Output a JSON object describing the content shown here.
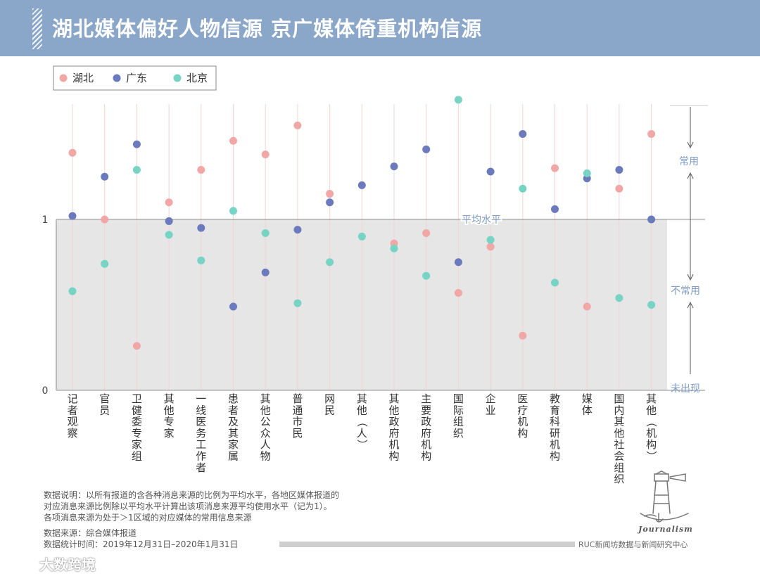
{
  "header": {
    "title": "湖北媒体偏好人物信源 京广媒体倚重机构信源"
  },
  "colors": {
    "header_bg": "#8aa6c9",
    "hubei": "#f0a7a5",
    "guangdong": "#6b79bd",
    "beijing": "#77d3c3",
    "band": "#e6e6e6",
    "region_text": "#7d9bc4"
  },
  "chart_data": {
    "type": "scatter",
    "title": "湖北媒体偏好人物信源 京广媒体倚重机构信源",
    "legend": [
      {
        "name": "湖北",
        "color": "#f0a7a5"
      },
      {
        "name": "广东",
        "color": "#6b79bd"
      },
      {
        "name": "北京",
        "color": "#77d3c3"
      }
    ],
    "legend_position": "top-left",
    "categories": [
      "记者观察",
      "官员",
      "卫健委专家组",
      "其他专家",
      "一线医务工作者",
      "患者及其家属",
      "其他公众人物",
      "普通市民",
      "网民",
      "其他（人）",
      "其他政府机构",
      "主要政府机构",
      "国际组织",
      "企业",
      "医疗机构",
      "教育科研机构",
      "媒体",
      "国内其他社会组织",
      "其他（机构）"
    ],
    "series": [
      {
        "name": "湖北",
        "values": [
          1.39,
          1.0,
          0.26,
          1.1,
          1.29,
          1.46,
          1.38,
          1.55,
          1.15,
          null,
          0.86,
          0.92,
          0.57,
          0.84,
          0.32,
          1.3,
          0.49,
          1.18,
          1.5
        ]
      },
      {
        "name": "广东",
        "values": [
          1.02,
          1.25,
          1.44,
          0.99,
          0.95,
          0.49,
          0.69,
          0.94,
          1.1,
          1.2,
          1.31,
          1.41,
          0.75,
          1.28,
          1.5,
          1.06,
          1.24,
          1.29,
          1.0
        ]
      },
      {
        "name": "北京",
        "values": [
          0.58,
          0.74,
          1.29,
          0.91,
          0.76,
          1.05,
          0.92,
          0.51,
          0.75,
          0.9,
          0.83,
          0.67,
          1.7,
          0.88,
          1.18,
          0.63,
          1.27,
          0.54,
          0.5
        ]
      }
    ],
    "ylim": [
      0,
      1.7
    ],
    "y_ticks": [
      "1",
      "0"
    ],
    "average_label": "平均水平",
    "regions": [
      "常用",
      "不常用",
      "未出现"
    ]
  },
  "notes": {
    "line1": "数据说明：以所有报道的含各种消息来源的比例为平均水平，各地区媒体报道的",
    "line2": "对应消息来源比例除以平均水平计算出该项消息来源平均使用水平（记为1）。",
    "line3": "各项消息来源为处于＞1区域的对应媒体的常用信息来源",
    "source": "数据来源：综合媒体报道",
    "period": "数据统计时间：2019年12月31日–2020年1月31日"
  },
  "credit": "RUC新闻坊数据与新闻研究中心",
  "logo_text": "Journalism",
  "watermark": "大数跨境"
}
